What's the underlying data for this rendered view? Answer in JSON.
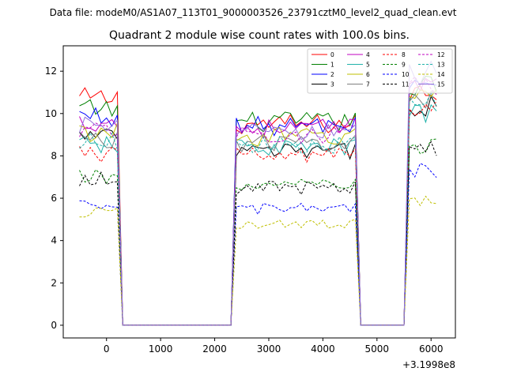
{
  "chart_data": {
    "type": "line",
    "suptitle": "Data file: modeM0/AS1A07_113T01_9000003526_23791cztM0_level2_quad_clean.evt",
    "title": "Quadrant 2 module wise count rates with 100.0s bins.",
    "xlabel": "",
    "ylabel": "",
    "x_offset_label": "+3.1998e8",
    "xlim": [
      -800,
      6450
    ],
    "ylim": [
      -0.6,
      13.2
    ],
    "xticks": [
      0,
      1000,
      2000,
      3000,
      4000,
      5000,
      6000
    ],
    "yticks": [
      0,
      2,
      4,
      6,
      8,
      10,
      12
    ],
    "xtick_labels": [
      "0",
      "1000",
      "2000",
      "3000",
      "4000",
      "5000",
      "6000"
    ],
    "ytick_labels": [
      "0",
      "2",
      "4",
      "6",
      "8",
      "10",
      "12"
    ],
    "legend_position": "upper right",
    "segments": [
      {
        "x_start": -500,
        "x_end": 200,
        "step": 100
      },
      {
        "x_start": 300,
        "x_end": 2300,
        "step": 100
      },
      {
        "x_start": 2400,
        "x_end": 4600,
        "step": 100
      },
      {
        "x_start": 4700,
        "x_end": 5500,
        "step": 100
      },
      {
        "x_start": 5600,
        "x_end": 6100,
        "step": 100
      }
    ],
    "series": [
      {
        "name": "0",
        "color": "#ff0000",
        "dash": "solid",
        "levels": [
          10.7,
          0.0,
          9.5,
          0.0,
          11.0
        ]
      },
      {
        "name": "1",
        "color": "#008000",
        "dash": "solid",
        "levels": [
          10.2,
          0.0,
          9.6,
          0.0,
          11.3
        ]
      },
      {
        "name": "2",
        "color": "#0000ff",
        "dash": "solid",
        "levels": [
          9.9,
          0.0,
          9.4,
          0.0,
          11.5
        ]
      },
      {
        "name": "3",
        "color": "#000000",
        "dash": "solid",
        "levels": [
          8.9,
          0.0,
          8.2,
          0.0,
          10.4
        ]
      },
      {
        "name": "4",
        "color": "#c000c0",
        "dash": "solid",
        "levels": [
          9.6,
          0.0,
          9.3,
          0.0,
          11.6
        ]
      },
      {
        "name": "5",
        "color": "#20b2aa",
        "dash": "solid",
        "levels": [
          8.5,
          0.0,
          8.4,
          0.0,
          10.0
        ]
      },
      {
        "name": "6",
        "color": "#bfbf00",
        "dash": "solid",
        "levels": [
          9.1,
          0.0,
          8.9,
          0.0,
          10.9
        ]
      },
      {
        "name": "7",
        "color": "#808080",
        "dash": "solid",
        "levels": [
          8.8,
          0.0,
          8.6,
          0.0,
          10.6
        ]
      },
      {
        "name": "8",
        "color": "#ff0000",
        "dash": "dashed",
        "levels": [
          8.1,
          0.0,
          8.0,
          0.0,
          10.2
        ]
      },
      {
        "name": "9",
        "color": "#008000",
        "dash": "dashed",
        "levels": [
          7.0,
          0.0,
          6.6,
          0.0,
          8.4
        ]
      },
      {
        "name": "10",
        "color": "#0000ff",
        "dash": "dashed",
        "levels": [
          5.6,
          0.0,
          5.5,
          0.0,
          7.3
        ]
      },
      {
        "name": "11",
        "color": "#000000",
        "dash": "dashed",
        "levels": [
          6.9,
          0.0,
          6.5,
          0.0,
          8.3
        ]
      },
      {
        "name": "12",
        "color": "#c000c0",
        "dash": "dashed",
        "levels": [
          9.3,
          0.0,
          9.0,
          0.0,
          11.2
        ]
      },
      {
        "name": "13",
        "color": "#20b2aa",
        "dash": "dashed",
        "levels": [
          8.7,
          0.0,
          8.5,
          0.0,
          10.5
        ]
      },
      {
        "name": "14",
        "color": "#bfbf00",
        "dash": "dashed",
        "levels": [
          5.3,
          0.0,
          4.8,
          0.0,
          5.8
        ]
      },
      {
        "name": "15",
        "color": "#9370db",
        "dash": "solid",
        "levels": [
          9.4,
          0.0,
          9.1,
          0.0,
          11.9
        ]
      }
    ]
  }
}
